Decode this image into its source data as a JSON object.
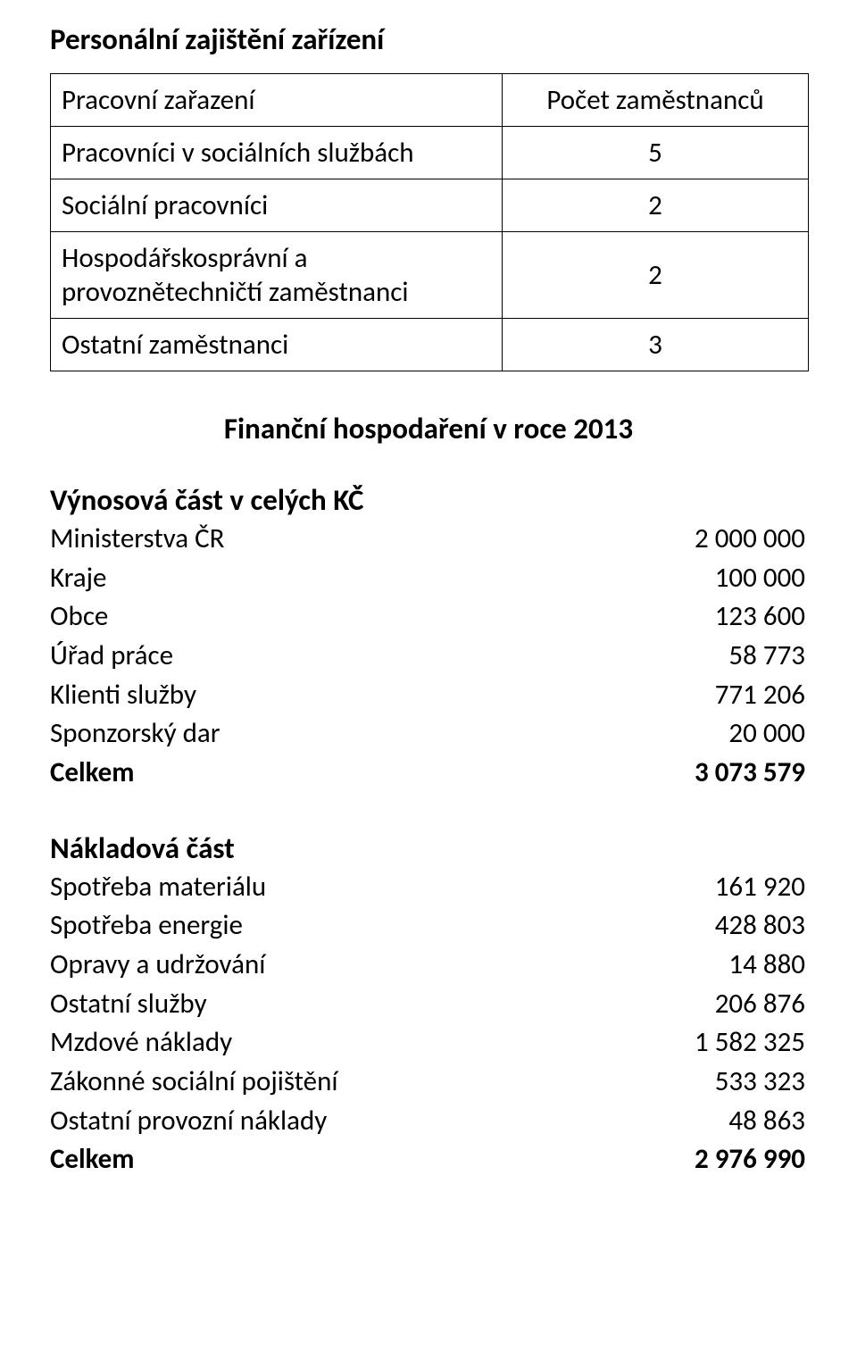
{
  "heading": "Personální zajištění zařízení",
  "staff_table": {
    "header": [
      "Pracovní zařazení",
      "Počet zaměstnanců"
    ],
    "rows": [
      [
        "Pracovníci v sociálních službách",
        "5"
      ],
      [
        "Sociální pracovníci",
        "2"
      ],
      [
        "Hospodářskosprávní a provoznětechničtí zaměstnanci",
        "2"
      ],
      [
        "Ostatní zaměstnanci",
        "3"
      ]
    ]
  },
  "finance_title": "Finanční hospodaření v roce 2013",
  "revenues": {
    "title": "Výnosová část v celých KČ",
    "rows": [
      {
        "label": "Ministerstva ČR",
        "value": "2 000 000",
        "bold": false
      },
      {
        "label": "Kraje",
        "value": "100 000",
        "bold": false
      },
      {
        "label": "Obce",
        "value": "123 600",
        "bold": false
      },
      {
        "label": "Úřad práce",
        "value": "58 773",
        "bold": false
      },
      {
        "label": "Klienti služby",
        "value": "771 206",
        "bold": false
      },
      {
        "label": "Sponzorský dar",
        "value": "20 000",
        "bold": false
      },
      {
        "label": "Celkem",
        "value": "3 073 579",
        "bold": true
      }
    ]
  },
  "costs": {
    "title": "Nákladová část",
    "rows": [
      {
        "label": "Spotřeba materiálu",
        "value": "161 920",
        "bold": false
      },
      {
        "label": "Spotřeba energie",
        "value": "428 803",
        "bold": false
      },
      {
        "label": "Opravy a udržování",
        "value": "14 880",
        "bold": false
      },
      {
        "label": "Ostatní služby",
        "value": "206 876",
        "bold": false
      },
      {
        "label": "Mzdové náklady",
        "value": "1 582 325",
        "bold": false
      },
      {
        "label": "Zákonné sociální pojištění",
        "value": "533 323",
        "bold": false
      },
      {
        "label": "Ostatní provozní náklady",
        "value": "48 863",
        "bold": false
      },
      {
        "label": "Celkem",
        "value": "2 976 990",
        "bold": true
      }
    ]
  }
}
